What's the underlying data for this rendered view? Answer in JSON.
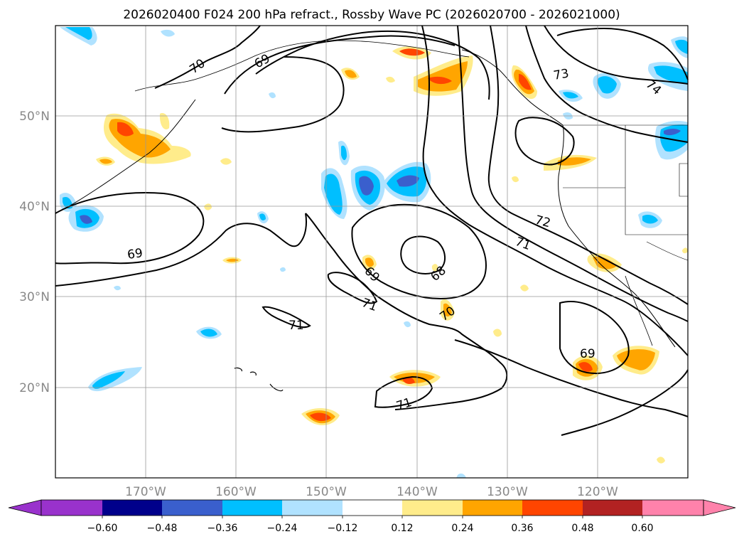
{
  "title": "2026020400 F024 200 hPa refract., Rossby Wave PC (2026020700 - 2026021000)",
  "axes": {
    "lon_labels": [
      "170°W",
      "160°W",
      "150°W",
      "140°W",
      "130°W",
      "120°W"
    ],
    "lat_labels": [
      "50°N",
      "40°N",
      "30°N",
      "20°N"
    ]
  },
  "colorbar": {
    "ticks": [
      "−0.60",
      "−0.48",
      "−0.36",
      "−0.24",
      "−0.12",
      "0.12",
      "0.24",
      "0.36",
      "0.48",
      "0.60"
    ],
    "colors": [
      "#9932cc",
      "#00008b",
      "#3a5fcd",
      "#00bfff",
      "#b0e2ff",
      "#ffffff",
      "#ffec8b",
      "#ffa500",
      "#ff4500",
      "#b22222",
      "#ff82ab"
    ]
  },
  "contour_labels": [
    "70",
    "69",
    "73",
    "74",
    "72",
    "71",
    "69",
    "68",
    "69",
    "71",
    "71",
    "70",
    "69",
    "71"
  ]
}
